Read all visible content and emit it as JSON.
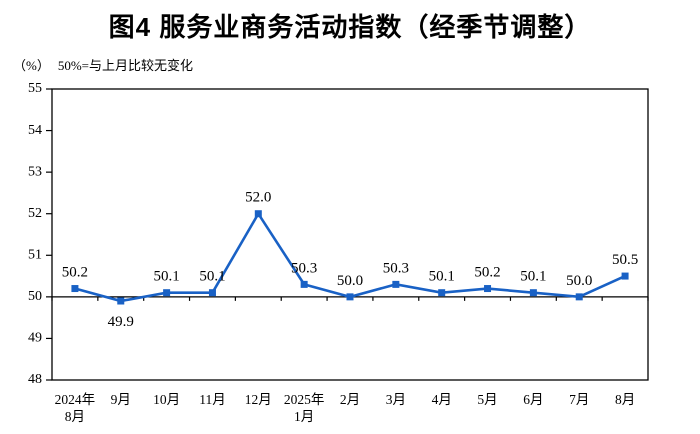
{
  "header": {
    "title": "图4 服务业商务活动指数（经季节调整）",
    "unit_label": "（%）",
    "note": "50%=与上月比较无变化"
  },
  "chart_data": {
    "type": "line",
    "title": "图4 服务业商务活动指数（经季节调整）",
    "categories": [
      "2024年\n8月",
      "9月",
      "10月",
      "11月",
      "12月",
      "2025年\n1月",
      "2月",
      "3月",
      "4月",
      "5月",
      "6月",
      "7月",
      "8月"
    ],
    "series": [
      {
        "name": "服务业商务活动指数",
        "values": [
          50.2,
          49.9,
          50.1,
          50.1,
          52.0,
          50.3,
          50.0,
          50.3,
          50.1,
          50.2,
          50.1,
          50.0,
          50.5
        ]
      }
    ],
    "value_labels": [
      "50.2",
      "49.9",
      "50.1",
      "50.1",
      "52.0",
      "50.3",
      "50.0",
      "50.3",
      "50.1",
      "50.2",
      "50.1",
      "50.0",
      "50.5"
    ],
    "xlabel": "",
    "ylabel": "（%）",
    "ylim": [
      48,
      55
    ],
    "ytick_step": 1,
    "ytick_labels": [
      "48",
      "49",
      "50",
      "51",
      "52",
      "53",
      "54",
      "55"
    ],
    "baseline_value": 50,
    "grid": false,
    "legend": "none",
    "line_color": "#1961c5",
    "marker": "square",
    "axis_color": "#000000"
  }
}
